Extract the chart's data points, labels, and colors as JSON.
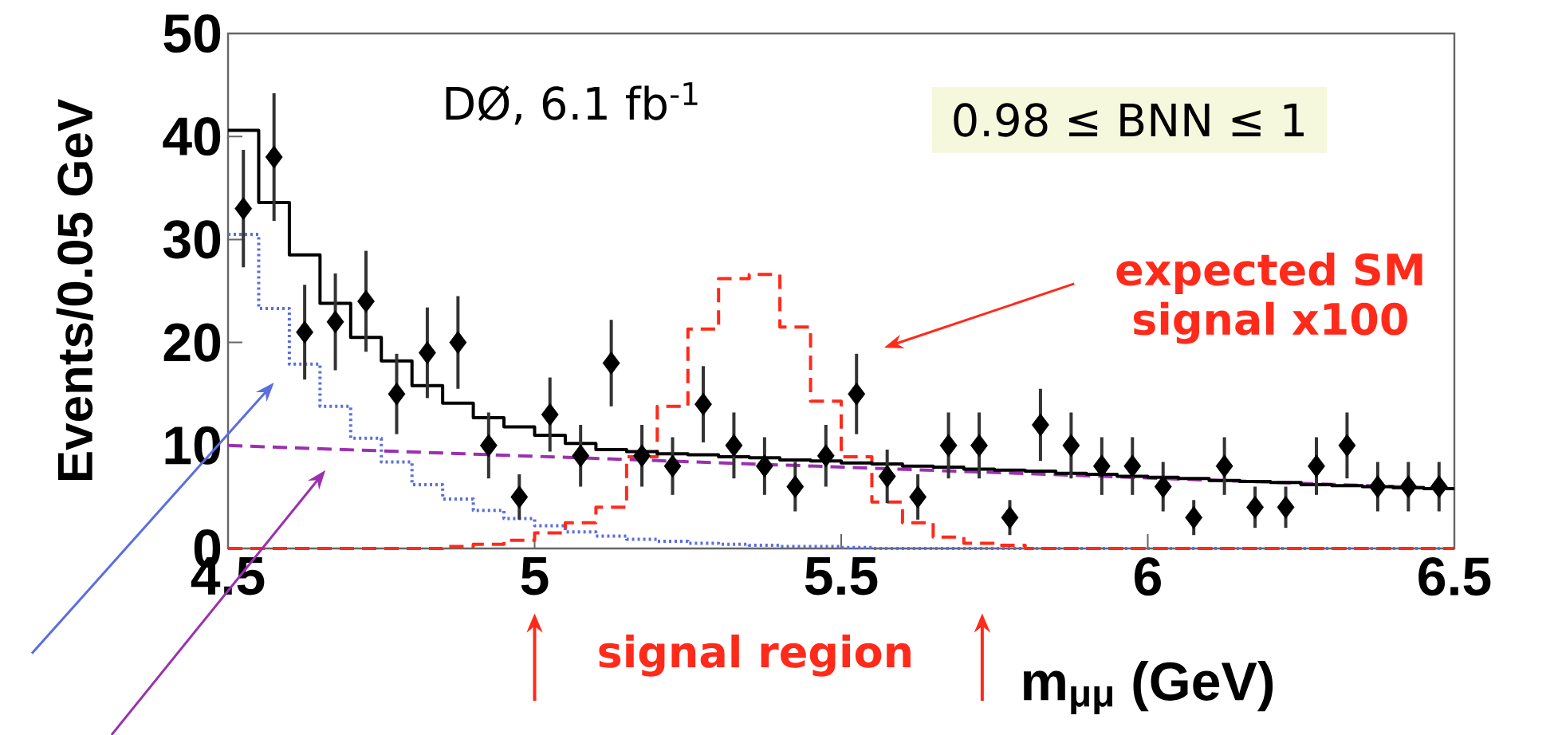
{
  "chart_data": {
    "type": "scatter",
    "xlabel": "m$_{μμ}$ (GeV)",
    "ylabel": "Events/0.05 GeV",
    "xlim": [
      4.5,
      6.5
    ],
    "ylim": [
      0,
      50
    ],
    "xticks": [
      4.5,
      5,
      5.5,
      6,
      6.5
    ],
    "yticks": [
      0,
      10,
      20,
      30,
      40,
      50
    ],
    "annotations": [
      "DØ, 6.1 fb$^{-1}$",
      "0.98 ≤ BNN ≤ 1",
      "expected SM signal x100",
      "signal region"
    ],
    "series": [
      {
        "type": "step",
        "color": "#5a6ee0",
        "line_style": "dotted",
        "x": [
          4.5,
          4.55,
          4.6,
          4.65,
          4.7,
          4.75,
          4.8,
          4.85,
          4.9,
          4.95,
          5.0,
          5.05,
          5.1,
          5.15,
          5.2,
          5.25,
          5.3,
          5.35,
          5.4,
          5.45,
          5.5,
          5.55,
          5.6,
          5.65,
          5.7,
          5.75,
          5.8,
          5.85,
          5.9,
          5.95,
          6.0,
          6.05,
          6.1,
          6.15,
          6.2,
          6.25,
          6.3,
          6.35,
          6.4,
          6.45,
          6.5
        ],
        "values": [
          30.5,
          23.3,
          17.9,
          13.8,
          10.7,
          8.4,
          6.2,
          4.8,
          3.7,
          2.9,
          2.2,
          1.6,
          1.2,
          0.9,
          0.7,
          0.5,
          0.4,
          0.3,
          0.2,
          0.2,
          0.1,
          0,
          0,
          0,
          0,
          0,
          0,
          0,
          0,
          0,
          0,
          0,
          0,
          0,
          0,
          0,
          0,
          0,
          0,
          0,
          0
        ]
      },
      {
        "type": "line",
        "color": "#9b30b0",
        "line_style": "dashed",
        "x": [
          4.5,
          6.5
        ],
        "values": [
          10,
          5.8
        ]
      },
      {
        "type": "step",
        "color": "#ff2a1a",
        "line_style": "dashed",
        "x": [
          4.5,
          4.55,
          4.6,
          4.65,
          4.7,
          4.75,
          4.8,
          4.85,
          4.9,
          4.95,
          5.0,
          5.05,
          5.1,
          5.15,
          5.2,
          5.25,
          5.3,
          5.35,
          5.4,
          5.45,
          5.5,
          5.55,
          5.6,
          5.65,
          5.7,
          5.75,
          5.8,
          5.85,
          5.9,
          5.95,
          6.0,
          6.05,
          6.1,
          6.15,
          6.2,
          6.25,
          6.3,
          6.35,
          6.4,
          6.45,
          6.5
        ],
        "values": [
          0,
          0,
          0,
          0,
          0,
          0,
          0,
          0.2,
          0.4,
          0.8,
          1.5,
          2.5,
          4,
          8.9,
          13.8,
          21.3,
          26.2,
          26.6,
          21.5,
          14.3,
          8.9,
          4.5,
          2.5,
          1.1,
          0.5,
          0.3,
          0,
          0,
          0,
          0,
          0,
          0,
          0,
          0,
          0,
          0,
          0,
          0,
          0,
          0,
          0
        ]
      },
      {
        "type": "step",
        "color": "#000000",
        "line_style": "solid",
        "x": [
          4.5,
          4.55,
          4.6,
          4.65,
          4.7,
          4.75,
          4.8,
          4.85,
          4.9,
          4.95,
          5.0,
          5.05,
          5.1,
          5.15,
          5.2,
          5.25,
          5.3,
          5.35,
          5.4,
          5.45,
          5.5,
          5.55,
          5.6,
          5.65,
          5.7,
          5.75,
          5.8,
          5.85,
          5.9,
          5.95,
          6.0,
          6.05,
          6.1,
          6.15,
          6.2,
          6.25,
          6.3,
          6.35,
          6.4,
          6.45,
          6.5
        ],
        "values": [
          40.6,
          33.6,
          28.5,
          23.8,
          20.5,
          18.2,
          15.8,
          14.1,
          12.7,
          11.8,
          11,
          10.2,
          9.6,
          9.4,
          9.2,
          9.1,
          8.9,
          8.8,
          8.6,
          8.5,
          8.3,
          8.2,
          8,
          7.9,
          7.7,
          7.6,
          7.5,
          7.3,
          7.2,
          7,
          6.9,
          6.8,
          6.6,
          6.5,
          6.4,
          6.2,
          6.1,
          6,
          5.9,
          5.8,
          5.8
        ]
      },
      {
        "color": "#000000",
        "marker": "diamond",
        "x": [
          4.525,
          4.575,
          4.625,
          4.675,
          4.725,
          4.775,
          4.825,
          4.875,
          4.925,
          4.975,
          5.025,
          5.075,
          5.125,
          5.175,
          5.225,
          5.275,
          5.325,
          5.375,
          5.425,
          5.475,
          5.525,
          5.575,
          5.625,
          5.675,
          5.725,
          5.775,
          5.825,
          5.875,
          5.925,
          5.975,
          6.025,
          6.075,
          6.125,
          6.175,
          6.225,
          6.275,
          6.325,
          6.375,
          6.425,
          6.475
        ],
        "values": [
          33,
          38,
          21,
          22,
          24,
          15,
          19,
          20,
          10,
          5,
          13,
          9,
          18,
          9,
          8,
          14,
          10,
          8,
          6,
          9,
          15,
          7,
          5,
          10,
          10,
          3,
          12,
          10,
          8,
          8,
          6,
          3,
          8,
          4,
          4,
          8,
          10,
          6,
          6,
          6
        ],
        "errors": [
          5.7,
          6.2,
          4.6,
          4.7,
          4.9,
          3.9,
          4.4,
          4.5,
          3.2,
          2.2,
          3.6,
          3,
          4.2,
          3,
          2.8,
          3.7,
          3.2,
          2.8,
          2.4,
          3,
          3.9,
          2.6,
          2.2,
          3.2,
          3.2,
          1.7,
          3.5,
          3.2,
          2.8,
          2.8,
          2.4,
          1.7,
          2.8,
          2,
          2,
          2.8,
          3.2,
          2.4,
          2.4,
          2.4
        ]
      }
    ]
  }
}
